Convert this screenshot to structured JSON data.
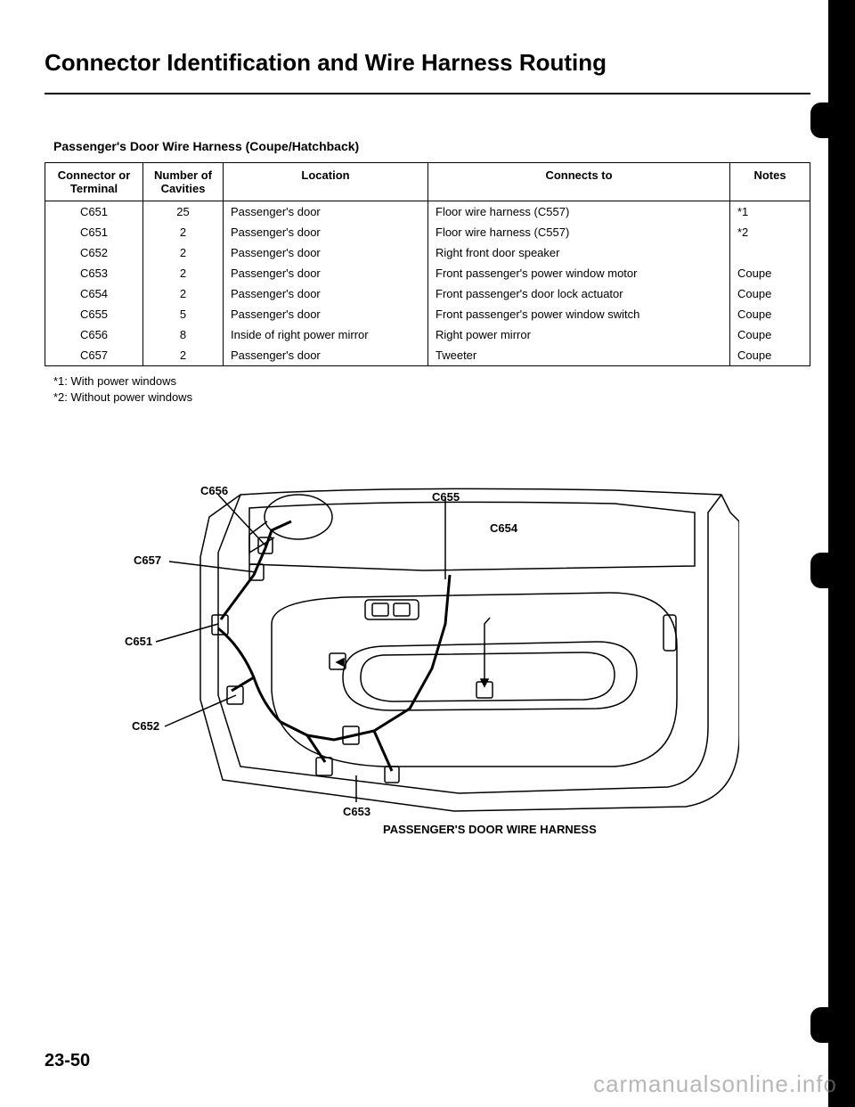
{
  "title": "Connector Identification and Wire Harness Routing",
  "subtitle": "Passenger's Door Wire Harness (Coupe/Hatchback)",
  "table": {
    "headers": {
      "c1": "Connector or Terminal",
      "c2": "Number of Cavities",
      "c3": "Location",
      "c4": "Connects to",
      "c5": "Notes"
    },
    "rows": [
      {
        "c1": "C651",
        "c2": "25",
        "c3": "Passenger's door",
        "c4": "Floor wire harness (C557)",
        "c5": "*1"
      },
      {
        "c1": "C651",
        "c2": "2",
        "c3": "Passenger's door",
        "c4": "Floor wire harness (C557)",
        "c5": "*2"
      },
      {
        "c1": "C652",
        "c2": "2",
        "c3": "Passenger's door",
        "c4": "Right front door speaker",
        "c5": ""
      },
      {
        "c1": "C653",
        "c2": "2",
        "c3": "Passenger's door",
        "c4": "Front passenger's power window motor",
        "c5": "Coupe"
      },
      {
        "c1": "C654",
        "c2": "2",
        "c3": "Passenger's door",
        "c4": "Front passenger's door lock actuator",
        "c5": "Coupe"
      },
      {
        "c1": "C655",
        "c2": "5",
        "c3": "Passenger's door",
        "c4": "Front passenger's power window switch",
        "c5": "Coupe"
      },
      {
        "c1": "C656",
        "c2": "8",
        "c3": "Inside of right power mirror",
        "c4": "Right power mirror",
        "c5": "Coupe"
      },
      {
        "c1": "C657",
        "c2": "2",
        "c3": "Passenger's door",
        "c4": "Tweeter",
        "c5": "Coupe"
      }
    ]
  },
  "footnotes": {
    "f1": "*1: With power windows",
    "f2": "*2: Without power windows"
  },
  "diagram": {
    "labels": {
      "c651": "C651",
      "c652": "C652",
      "c653": "C653",
      "c654": "C654",
      "c655": "C655",
      "c656": "C656",
      "c657": "C657"
    },
    "caption": "PASSENGER'S DOOR WIRE HARNESS",
    "stroke_color": "#000000",
    "stroke_width": 1.5,
    "harness_width": 3
  },
  "page_number": "23-50",
  "watermark": "carmanualsonline.info",
  "colors": {
    "text": "#000000",
    "background": "#ffffff",
    "watermark": "#888888"
  }
}
